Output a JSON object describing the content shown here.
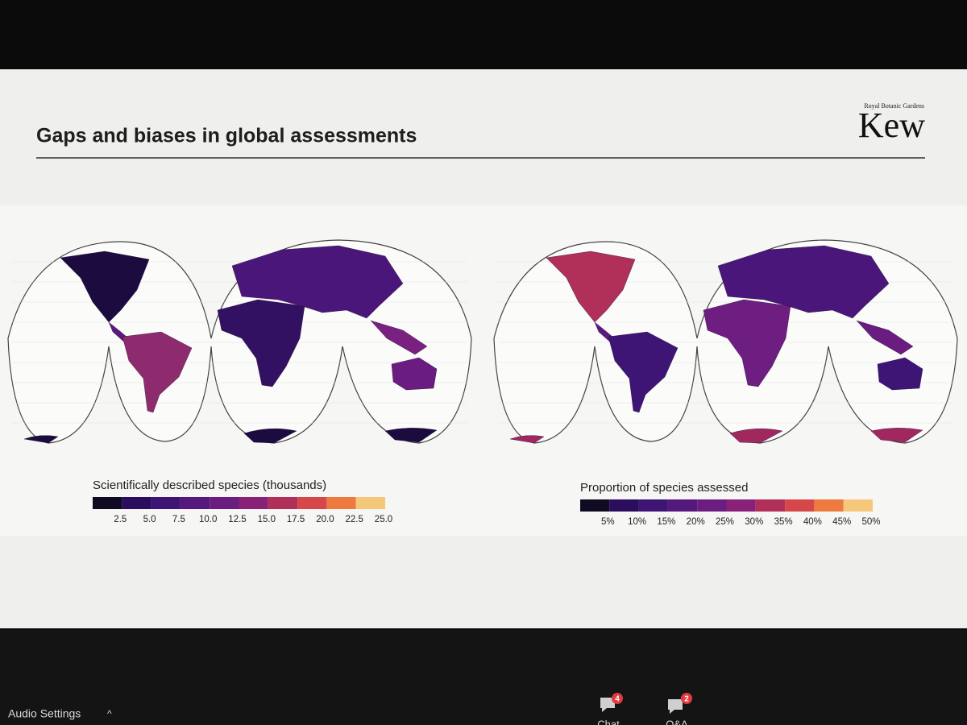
{
  "slide": {
    "title": "Gaps and biases in global assessments",
    "logo": {
      "subtitle": "Royal Botanic Gardens",
      "name": "Kew"
    },
    "maps": [
      {
        "legend_title": "Scientifically described species (thousands)",
        "colors": [
          "#100a22",
          "#2a0d5c",
          "#3e1575",
          "#55197e",
          "#6c1e80",
          "#8a2178",
          "#b0305a",
          "#d6474a",
          "#ee7a3f",
          "#f5c77a"
        ],
        "ticks": [
          "2.5",
          "5.0",
          "7.5",
          "10.0",
          "12.5",
          "15.0",
          "17.5",
          "20.0",
          "22.5",
          "25.0"
        ]
      },
      {
        "legend_title": "Proportion of species assessed",
        "colors": [
          "#100a22",
          "#2a0d5c",
          "#3e1575",
          "#55197e",
          "#6c1e80",
          "#8a2178",
          "#b0305a",
          "#d6474a",
          "#ee7a3f",
          "#f5c77a"
        ],
        "ticks": [
          "5%",
          "10%",
          "15%",
          "20%",
          "25%",
          "30%",
          "35%",
          "40%",
          "45%",
          "50%"
        ]
      }
    ]
  },
  "zoom": {
    "audio_settings": "Audio Settings",
    "chat": {
      "label": "Chat",
      "badge": "4"
    },
    "qa": {
      "label": "Q&A",
      "badge": "2"
    }
  }
}
